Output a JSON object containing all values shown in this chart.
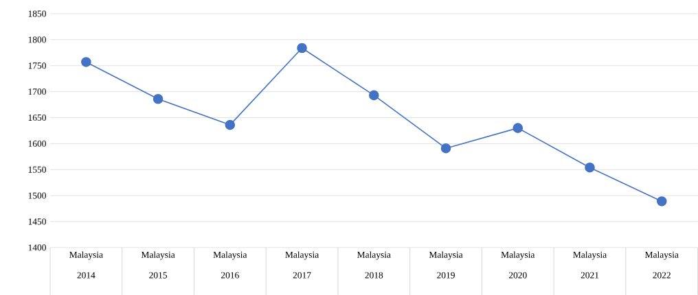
{
  "chart_data": {
    "type": "line",
    "categories": [
      "Malaysia 2014",
      "Malaysia 2015",
      "Malaysia 2016",
      "Malaysia 2017",
      "Malaysia 2018",
      "Malaysia 2019",
      "Malaysia 2020",
      "Malaysia 2021",
      "Malaysia 2022"
    ],
    "values": [
      1757,
      1686,
      1636,
      1784,
      1693,
      1591,
      1630,
      1554,
      1489
    ],
    "color": "#4472c4",
    "ylim": [
      1400,
      1850
    ],
    "yticks": [
      1400,
      1450,
      1500,
      1550,
      1600,
      1650,
      1700,
      1750,
      1800,
      1850
    ],
    "grid": "y",
    "marker": "circle",
    "line_style": "solid"
  }
}
